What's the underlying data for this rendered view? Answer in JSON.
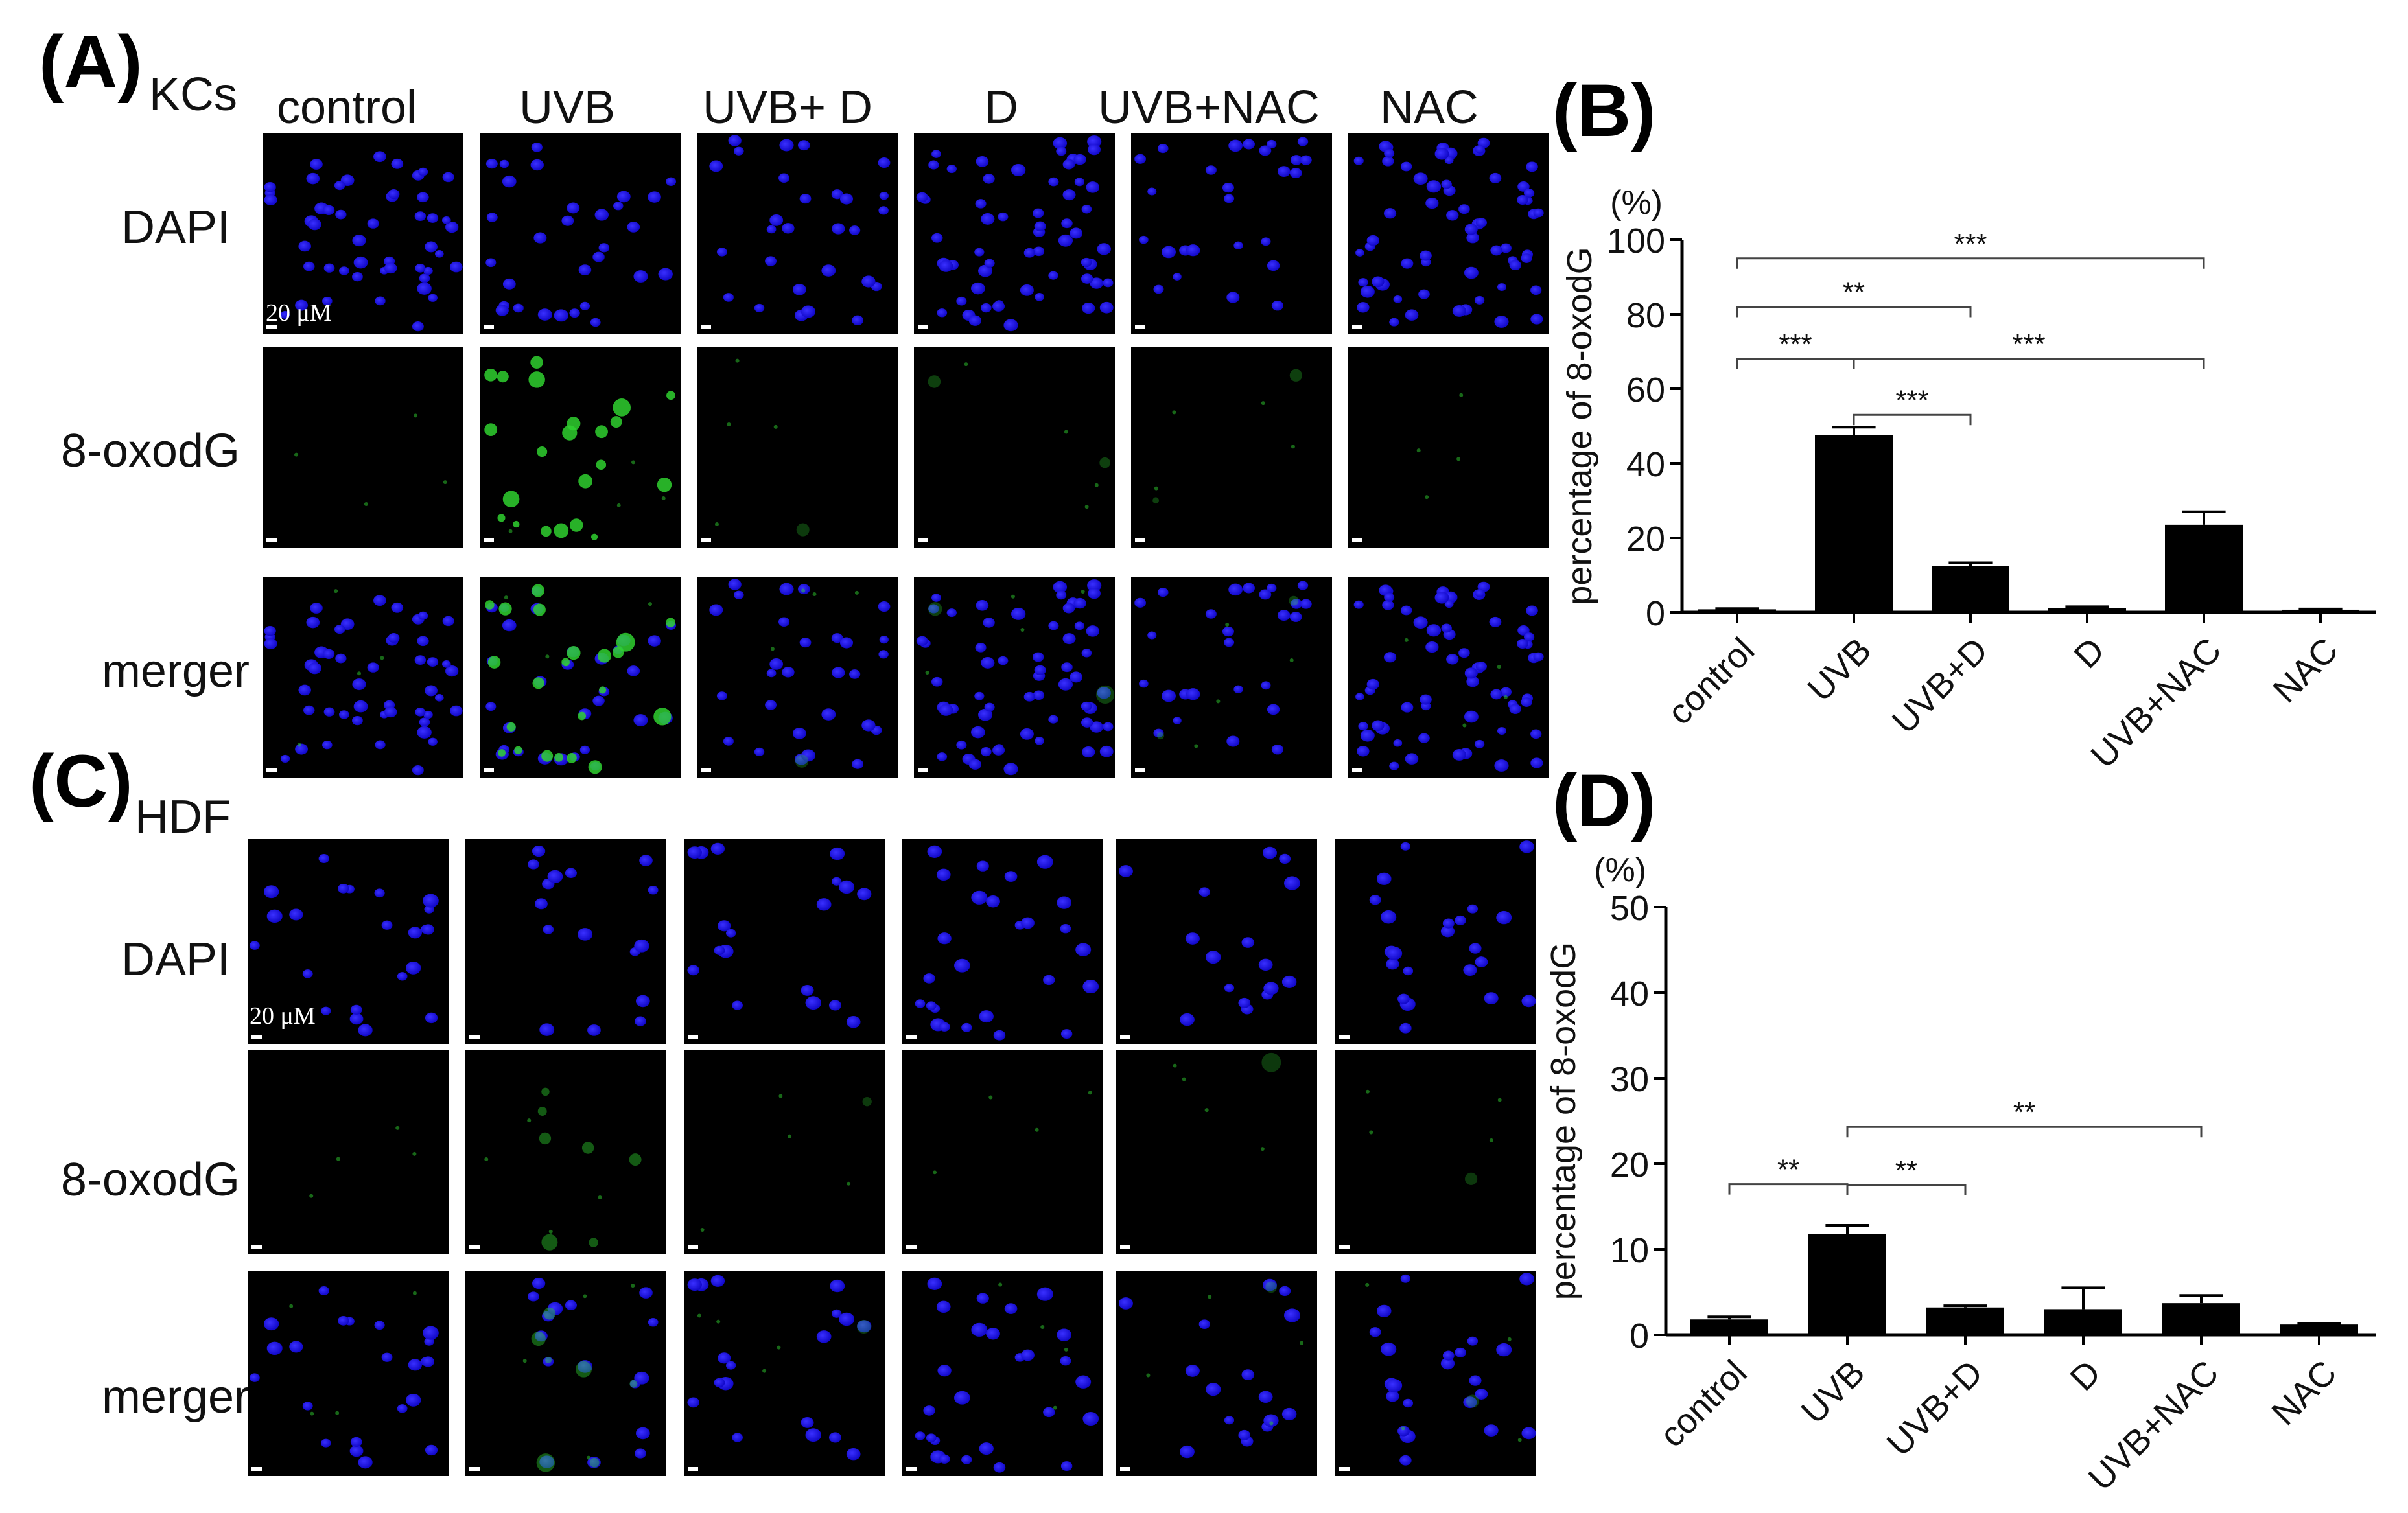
{
  "figure": {
    "panel_A": {
      "letter": "A",
      "cell_type": "KCs"
    },
    "panel_B": {
      "letter": "B"
    },
    "panel_C": {
      "letter": "C",
      "cell_type": "HDF"
    },
    "panel_D": {
      "letter": "D"
    },
    "column_labels": [
      "control",
      "UVB",
      "UVB+ D",
      "D",
      "UVB+NAC",
      "NAC"
    ],
    "row_labels": [
      "DAPI",
      "8-oxodG",
      "merger"
    ],
    "scale_bar_label": "20 μM",
    "colors": {
      "nuclei": "#1a12e6",
      "oxodg": "#2fd02f",
      "image_bg": "#000000",
      "bar": "#000000"
    }
  },
  "chart_data": [
    {
      "panel": "B",
      "type": "bar",
      "categories": [
        "control",
        "UVB",
        "UVB+D",
        "D",
        "UVB+NAC",
        "NAC"
      ],
      "values": [
        0.8,
        47.5,
        12.5,
        1.2,
        23.5,
        0.7
      ],
      "errors": [
        0.2,
        2.2,
        0.8,
        0.3,
        3.5,
        0.2
      ],
      "ylabel": "percentage of 8-oxodG",
      "unit": "(%)",
      "ylim": [
        0,
        100
      ],
      "yticks": [
        0,
        20,
        40,
        60,
        80,
        100
      ],
      "significance": [
        {
          "from": "control",
          "to": "UVB+NAC",
          "label": "***",
          "y": 95
        },
        {
          "from": "control",
          "to": "UVB+D",
          "label": "**",
          "y": 82
        },
        {
          "from": "control",
          "to": "UVB",
          "label": "***",
          "y": 68
        },
        {
          "from": "UVB",
          "to": "UVB+NAC",
          "label": "***",
          "y": 68
        },
        {
          "from": "UVB",
          "to": "UVB+D",
          "label": "***",
          "y": 53
        }
      ]
    },
    {
      "panel": "D",
      "type": "bar",
      "categories": [
        "control",
        "UVB",
        "UVB+D",
        "D",
        "UVB+NAC",
        "NAC"
      ],
      "values": [
        1.8,
        11.8,
        3.2,
        3.0,
        3.7,
        1.2
      ],
      "errors": [
        0.3,
        1.0,
        0.2,
        2.5,
        0.9,
        0.1
      ],
      "ylabel": "percentage of 8-oxodG",
      "unit": "(%)",
      "ylim": [
        0,
        50
      ],
      "yticks": [
        0,
        10,
        20,
        30,
        40,
        50
      ],
      "significance": [
        {
          "from": "control",
          "to": "UVB",
          "label": "**",
          "y": 17.6
        },
        {
          "from": "UVB",
          "to": "UVB+D",
          "label": "**",
          "y": 17.5
        },
        {
          "from": "UVB",
          "to": "UVB+NAC",
          "label": "**",
          "y": 24.3
        }
      ]
    }
  ]
}
